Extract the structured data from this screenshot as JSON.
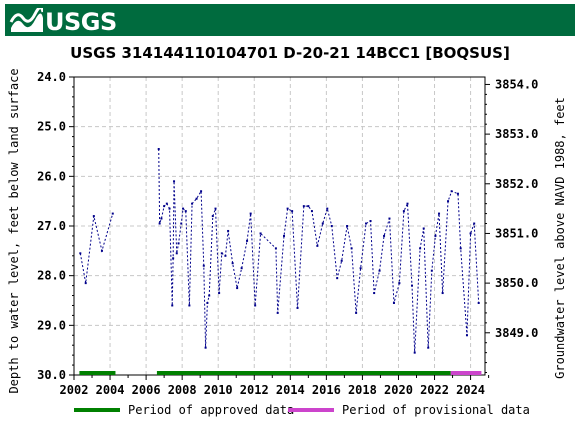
{
  "header": {
    "agency": "USGS"
  },
  "chart_data": {
    "type": "scatter",
    "title": "USGS 314144110104701 D-20-21 14BCC1 [BOQSUS]",
    "ylabel": "Depth to water level, feet below land surface",
    "y2label": "Groundwater level above NAVD 1988, feet",
    "xlim": [
      2002,
      2024.8
    ],
    "ylim": [
      30.0,
      24.0
    ],
    "y2lim": [
      3848.15,
      3854.15
    ],
    "y_reversed": true,
    "xticks": [
      2002,
      2004,
      2006,
      2008,
      2010,
      2012,
      2014,
      2016,
      2018,
      2020,
      2022,
      2024
    ],
    "yticks": [
      24.0,
      25.0,
      26.0,
      27.0,
      28.0,
      29.0,
      30.0
    ],
    "y2ticks": [
      3849.0,
      3850.0,
      3851.0,
      3852.0,
      3853.0,
      3854.0
    ],
    "xtick_labels": [
      "2002",
      "2004",
      "2006",
      "2008",
      "2010",
      "2012",
      "2014",
      "2016",
      "2018",
      "2020",
      "2022",
      "2024"
    ],
    "ytick_labels": [
      "24.0",
      "25.0",
      "26.0",
      "27.0",
      "28.0",
      "29.0",
      "30.0"
    ],
    "y2tick_labels": [
      "3849.0",
      "3850.0",
      "3851.0",
      "3852.0",
      "3853.0",
      "3854.0"
    ],
    "series": [
      {
        "color": "#00008b",
        "points": [
          [
            2002.35,
            27.55
          ],
          [
            2002.65,
            28.15
          ],
          [
            2003.1,
            26.8
          ],
          [
            2003.55,
            27.5
          ],
          [
            2004.15,
            26.75
          ],
          [
            2006.7,
            25.45
          ],
          [
            2006.75,
            26.95
          ],
          [
            2006.85,
            26.85
          ],
          [
            2007.0,
            26.6
          ],
          [
            2007.15,
            26.55
          ],
          [
            2007.3,
            26.65
          ],
          [
            2007.45,
            28.6
          ],
          [
            2007.5,
            27.65
          ],
          [
            2007.55,
            26.1
          ],
          [
            2007.7,
            27.55
          ],
          [
            2007.8,
            27.35
          ],
          [
            2007.95,
            26.95
          ],
          [
            2008.05,
            26.65
          ],
          [
            2008.2,
            26.7
          ],
          [
            2008.4,
            28.6
          ],
          [
            2008.55,
            26.55
          ],
          [
            2008.8,
            26.45
          ],
          [
            2009.05,
            26.3
          ],
          [
            2009.2,
            27.8
          ],
          [
            2009.3,
            29.45
          ],
          [
            2009.4,
            28.55
          ],
          [
            2009.5,
            28.4
          ],
          [
            2009.7,
            26.8
          ],
          [
            2009.85,
            26.65
          ],
          [
            2010.05,
            28.35
          ],
          [
            2010.2,
            27.55
          ],
          [
            2010.4,
            27.6
          ],
          [
            2010.55,
            27.1
          ],
          [
            2010.8,
            27.75
          ],
          [
            2011.05,
            28.25
          ],
          [
            2011.3,
            27.85
          ],
          [
            2011.6,
            27.3
          ],
          [
            2011.8,
            26.75
          ],
          [
            2012.05,
            28.6
          ],
          [
            2012.35,
            27.15
          ],
          [
            2013.2,
            27.45
          ],
          [
            2013.3,
            28.75
          ],
          [
            2013.65,
            27.2
          ],
          [
            2013.85,
            26.65
          ],
          [
            2014.1,
            26.7
          ],
          [
            2014.4,
            28.65
          ],
          [
            2014.75,
            26.6
          ],
          [
            2015.0,
            26.6
          ],
          [
            2015.2,
            26.7
          ],
          [
            2015.5,
            27.4
          ],
          [
            2015.8,
            26.95
          ],
          [
            2016.05,
            26.65
          ],
          [
            2016.3,
            27.0
          ],
          [
            2016.6,
            28.05
          ],
          [
            2016.85,
            27.7
          ],
          [
            2017.15,
            27.0
          ],
          [
            2017.4,
            27.45
          ],
          [
            2017.65,
            28.75
          ],
          [
            2017.9,
            27.85
          ],
          [
            2018.2,
            26.95
          ],
          [
            2018.45,
            26.9
          ],
          [
            2018.65,
            28.35
          ],
          [
            2018.95,
            27.9
          ],
          [
            2019.2,
            27.2
          ],
          [
            2019.5,
            26.85
          ],
          [
            2019.75,
            28.55
          ],
          [
            2020.05,
            28.15
          ],
          [
            2020.3,
            26.7
          ],
          [
            2020.5,
            26.55
          ],
          [
            2020.75,
            28.2
          ],
          [
            2020.9,
            29.55
          ],
          [
            2021.2,
            27.45
          ],
          [
            2021.4,
            27.05
          ],
          [
            2021.65,
            29.45
          ],
          [
            2021.85,
            27.9
          ],
          [
            2022.05,
            27.2
          ],
          [
            2022.25,
            26.75
          ],
          [
            2022.45,
            28.35
          ],
          [
            2022.75,
            26.5
          ],
          [
            2022.95,
            26.3
          ],
          [
            2023.3,
            26.35
          ],
          [
            2023.45,
            27.45
          ],
          [
            2023.8,
            29.2
          ],
          [
            2024.0,
            27.15
          ],
          [
            2024.2,
            26.95
          ],
          [
            2024.45,
            28.55
          ]
        ]
      }
    ],
    "legend": {
      "placement": "bottom",
      "entries": [
        {
          "label": "Period of approved data",
          "color": "#008000"
        },
        {
          "label": "Period of provisional data",
          "color": "#cc44cc"
        }
      ]
    },
    "periods": [
      {
        "kind": "approved",
        "start": 2002.3,
        "end": 2004.3
      },
      {
        "kind": "approved",
        "start": 2006.6,
        "end": 2022.9
      },
      {
        "kind": "provisional",
        "start": 2022.9,
        "end": 2024.6
      }
    ]
  }
}
